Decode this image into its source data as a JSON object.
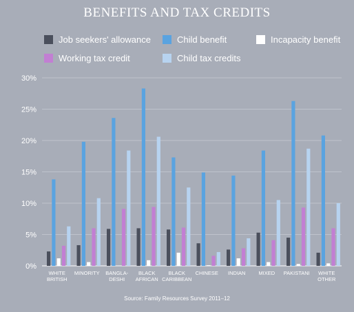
{
  "title": "BENEFITS AND TAX CREDITS",
  "source": "Source: Family Resources Survey 2011–12",
  "legend": [
    {
      "name": "Job seekers' allowance",
      "color": "#4a4f5c"
    },
    {
      "name": "Child benefit",
      "color": "#5aa3e0"
    },
    {
      "name": "Incapacity benefit",
      "color": "#ffffff"
    },
    {
      "name": "Working tax credit",
      "color": "#c27fd3"
    },
    {
      "name": "Child tax credits",
      "color": "#b7d3f0"
    }
  ],
  "chart_data": {
    "type": "bar",
    "categories": [
      [
        "WHITE",
        "BRITISH"
      ],
      [
        "MINORITY"
      ],
      [
        "BANGLA-",
        "DESHI"
      ],
      [
        "BLACK",
        "AFRICAN"
      ],
      [
        "BLACK",
        "CARIBBEAN"
      ],
      [
        "CHINESE"
      ],
      [
        "INDIAN"
      ],
      [
        "MIXED"
      ],
      [
        "PAKISTANI"
      ],
      [
        "WHITE",
        "OTHER"
      ]
    ],
    "series": [
      {
        "name": "Job seekers' allowance",
        "color": "#4a4f5c",
        "values": [
          2.3,
          3.3,
          5.9,
          6.0,
          5.8,
          3.6,
          2.6,
          5.3,
          4.5,
          2.1
        ]
      },
      {
        "name": "Child benefit",
        "color": "#5aa3e0",
        "values": [
          13.8,
          19.8,
          23.6,
          28.3,
          17.3,
          14.9,
          14.4,
          18.4,
          26.3,
          20.8
        ]
      },
      {
        "name": "Incapacity benefit",
        "color": "#ffffff",
        "values": [
          1.2,
          0.6,
          0.0,
          0.9,
          2.1,
          0.1,
          1.2,
          0.6,
          0.3,
          0.4
        ]
      },
      {
        "name": "Working tax credit",
        "color": "#c27fd3",
        "values": [
          3.2,
          6.0,
          9.1,
          9.4,
          6.1,
          1.6,
          2.8,
          4.1,
          9.3,
          6.0
        ]
      },
      {
        "name": "Child tax credits",
        "color": "#b7d3f0",
        "values": [
          6.3,
          10.8,
          18.4,
          20.6,
          12.5,
          2.2,
          4.4,
          10.5,
          18.7,
          10.0
        ]
      }
    ],
    "y_ticks": [
      "0%",
      "5%",
      "10%",
      "15%",
      "20%",
      "25%",
      "30%"
    ],
    "ylim": [
      0,
      30
    ],
    "grid": true,
    "legend_position": "top"
  }
}
